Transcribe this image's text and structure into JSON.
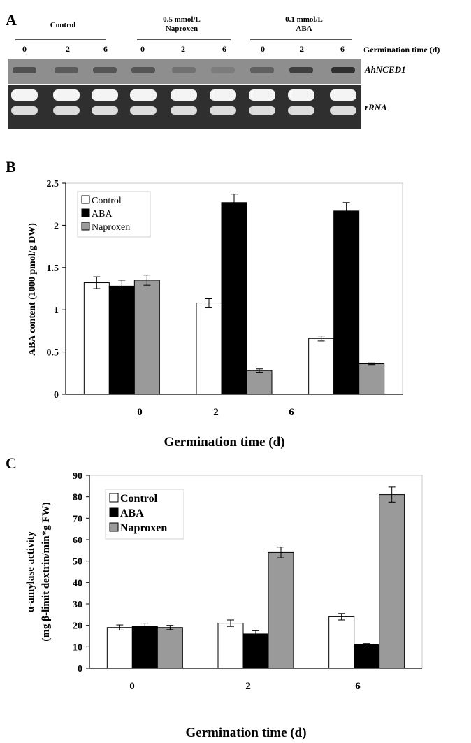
{
  "panel_a": {
    "letter": "A",
    "groups": [
      {
        "label_line1": "Control",
        "label_line2": "",
        "lanes": [
          "0",
          "2",
          "6"
        ]
      },
      {
        "label_line1": "0.5 mmol/L",
        "label_line2": "Naproxen",
        "lanes": [
          "0",
          "2",
          "6"
        ]
      },
      {
        "label_line1": "0.1 mmol/L",
        "label_line2": "ABA",
        "lanes": [
          "0",
          "2",
          "6"
        ]
      }
    ],
    "time_label": "Germination time (d)",
    "gene_label": "AhNCED1",
    "rrna_label": "rRNA",
    "band_intensity": [
      0.55,
      0.45,
      0.5,
      0.5,
      0.25,
      0.15,
      0.4,
      0.7,
      0.85
    ]
  },
  "chart_data": [
    {
      "panel": "B",
      "type": "bar",
      "categories": [
        "0",
        "2",
        "6"
      ],
      "series": [
        {
          "name": "Control",
          "color": "#ffffff",
          "values": [
            1.32,
            1.08,
            0.66
          ],
          "errors": [
            0.07,
            0.05,
            0.03
          ]
        },
        {
          "name": "ABA",
          "color": "#000000",
          "values": [
            1.28,
            2.27,
            2.17
          ],
          "errors": [
            0.07,
            0.1,
            0.1
          ]
        },
        {
          "name": "Naproxen",
          "color": "#9a9a9a",
          "values": [
            1.35,
            0.28,
            0.36
          ],
          "errors": [
            0.06,
            0.02,
            0.01
          ]
        }
      ],
      "xlabel": "Germination time (d)",
      "ylabel": "ABA content (1000 pmol/g DW)",
      "ylim": [
        0,
        2.5
      ],
      "yticks": [
        "0",
        "0.5",
        "1",
        "1.5",
        "2",
        "2.5"
      ],
      "legend": "top-left"
    },
    {
      "panel": "C",
      "type": "bar",
      "categories": [
        "0",
        "2",
        "6"
      ],
      "series": [
        {
          "name": "Control",
          "color": "#ffffff",
          "values": [
            19,
            21,
            24
          ],
          "errors": [
            1.2,
            1.5,
            1.5
          ]
        },
        {
          "name": "ABA",
          "color": "#000000",
          "values": [
            19.5,
            16,
            11
          ],
          "errors": [
            1.5,
            1.5,
            0.5
          ]
        },
        {
          "name": "Naproxen",
          "color": "#9a9a9a",
          "values": [
            19,
            54,
            81
          ],
          "errors": [
            1.0,
            2.5,
            3.5
          ]
        }
      ],
      "xlabel": "Germination time (d)",
      "ylabel_line1": "α-amylase activity",
      "ylabel_line2": "(mg β-limit dextrin/min*g FW)",
      "ylim": [
        0,
        90
      ],
      "yticks": [
        "0",
        "10",
        "20",
        "30",
        "40",
        "50",
        "60",
        "70",
        "80",
        "90"
      ],
      "legend": "top-left"
    }
  ],
  "panel_letters": {
    "b": "B",
    "c": "C"
  }
}
